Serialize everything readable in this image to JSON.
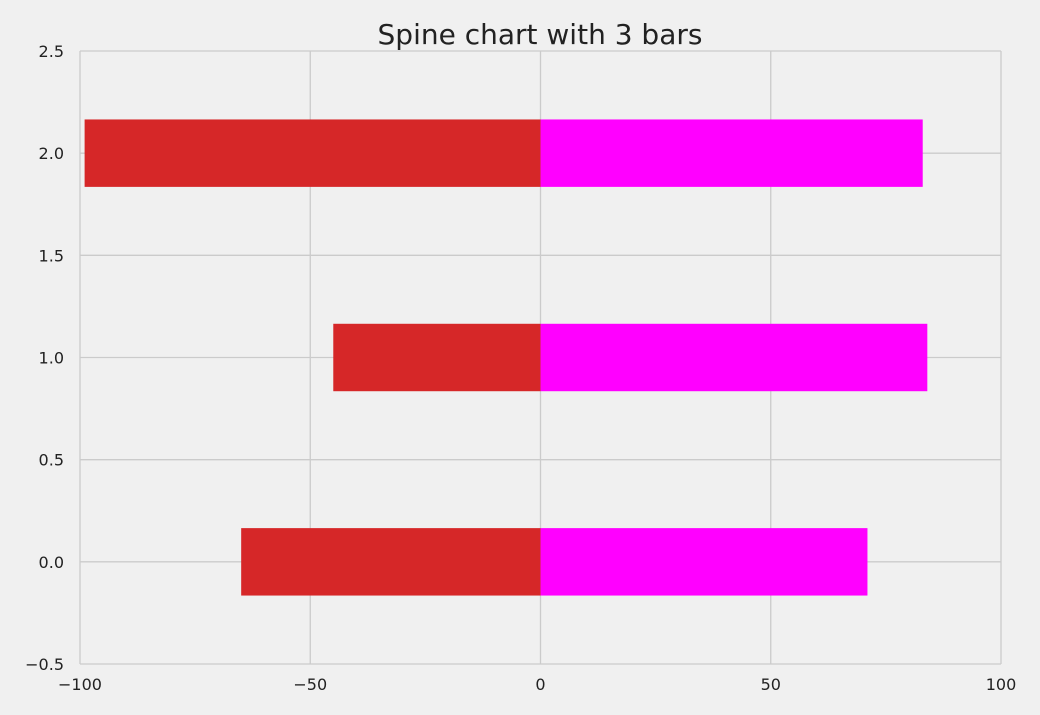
{
  "chart_data": {
    "type": "bar",
    "orientation": "horizontal-diverging",
    "title": "Spine chart with 3 bars",
    "xlabel": "",
    "ylabel": "",
    "xlim": [
      -100,
      100
    ],
    "ylim": [
      -0.5,
      2.5
    ],
    "x_ticks": [
      -100,
      -50,
      0,
      50,
      100
    ],
    "x_tick_labels": [
      "−100",
      "−50",
      "0",
      "50",
      "100"
    ],
    "y_ticks": [
      -0.5,
      0.0,
      0.5,
      1.0,
      1.5,
      2.0,
      2.5
    ],
    "y_tick_labels": [
      "−0.5",
      "0.0",
      "0.5",
      "1.0",
      "1.5",
      "2.0",
      "2.5"
    ],
    "categories": [
      0,
      1,
      2
    ],
    "bar_height": 0.33,
    "grid": true,
    "series": [
      {
        "values": [
          -65,
          -45,
          -99
        ],
        "color": "#d62728"
      },
      {
        "values": [
          71,
          84,
          83
        ],
        "color": "#ff00ff"
      }
    ],
    "background_color": "#f0f0f0",
    "grid_color": "#cbcbcb"
  }
}
